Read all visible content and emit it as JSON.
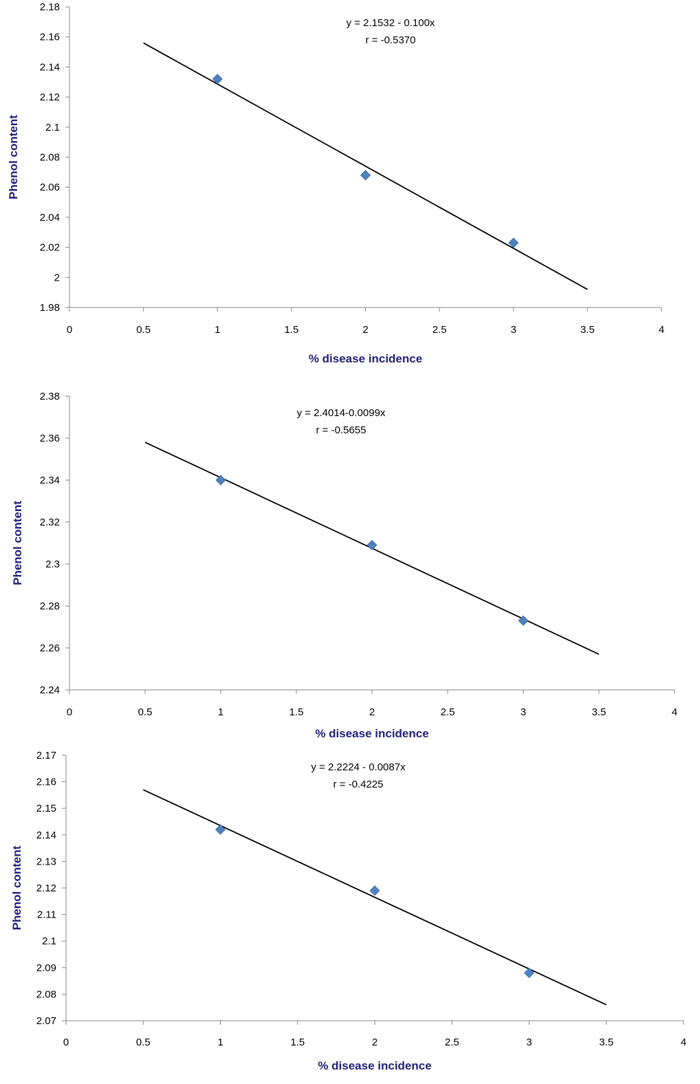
{
  "chart_data": [
    {
      "type": "scatter",
      "title": "",
      "xlabel": "% disease incidence",
      "ylabel": "Phenol content",
      "xlim": [
        0,
        4
      ],
      "ylim": [
        1.98,
        2.18
      ],
      "x_ticks": [
        "0",
        "0.5",
        "1",
        "1.5",
        "2",
        "2.5",
        "3",
        "3.5",
        "4"
      ],
      "y_ticks": [
        "1.98",
        "2",
        "2.02",
        "2.04",
        "2.06",
        "2.08",
        "2.1",
        "2.12",
        "2.14",
        "2.16",
        "2.18"
      ],
      "grid": false,
      "points": [
        {
          "x": 1,
          "y": 2.132
        },
        {
          "x": 2,
          "y": 2.068
        },
        {
          "x": 3,
          "y": 2.023
        }
      ],
      "trendline": {
        "x": [
          0.5,
          3.5
        ],
        "y": [
          2.156,
          1.992
        ]
      },
      "annotations": [
        "y = 2.1532 - 0.100x",
        "r = -0.5370"
      ],
      "marker_color": "#4f81bd",
      "line_color": "#000000"
    },
    {
      "type": "scatter",
      "title": "",
      "xlabel": "% disease incidence",
      "ylabel": "Phenol content",
      "xlim": [
        0,
        4
      ],
      "ylim": [
        2.24,
        2.38
      ],
      "x_ticks": [
        "0",
        "0.5",
        "1",
        "1.5",
        "2",
        "2.5",
        "3",
        "3.5",
        "4"
      ],
      "y_ticks": [
        "2.24",
        "2.26",
        "2.28",
        "2.3",
        "2.32",
        "2.34",
        "2.36",
        "2.38"
      ],
      "grid": false,
      "points": [
        {
          "x": 1,
          "y": 2.34
        },
        {
          "x": 2,
          "y": 2.309
        },
        {
          "x": 3,
          "y": 2.273
        }
      ],
      "trendline": {
        "x": [
          0.5,
          3.5
        ],
        "y": [
          2.358,
          2.257
        ]
      },
      "annotations": [
        "y = 2.4014-0.0099x",
        "r = -0.5655"
      ],
      "marker_color": "#4f81bd",
      "line_color": "#000000"
    },
    {
      "type": "scatter",
      "title": "",
      "xlabel": "% disease incidence",
      "ylabel": "Phenol content",
      "xlim": [
        0,
        4
      ],
      "ylim": [
        2.07,
        2.17
      ],
      "x_ticks": [
        "0",
        "0.5",
        "1",
        "1.5",
        "2",
        "2.5",
        "3",
        "3.5",
        "4"
      ],
      "y_ticks": [
        "2.07",
        "2.08",
        "2.09",
        "2.1",
        "2.11",
        "2.12",
        "2.13",
        "2.14",
        "2.15",
        "2.16",
        "2.17"
      ],
      "grid": false,
      "points": [
        {
          "x": 1,
          "y": 2.142
        },
        {
          "x": 2,
          "y": 2.119
        },
        {
          "x": 3,
          "y": 2.088
        }
      ],
      "trendline": {
        "x": [
          0.5,
          3.5
        ],
        "y": [
          2.157,
          2.076
        ]
      },
      "annotations": [
        "y = 2.2224 - 0.0087x",
        "r = -0.4225"
      ],
      "marker_color": "#4f81bd",
      "line_color": "#000000"
    }
  ]
}
